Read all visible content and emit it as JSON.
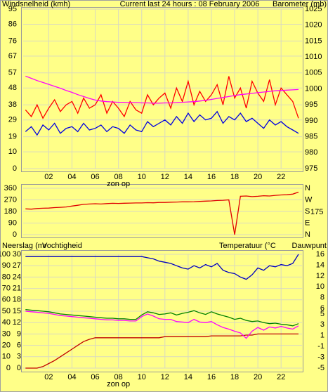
{
  "chart_data": [
    {
      "type": "line",
      "title": "Current last 24 hours : 08 February 2006",
      "ylabel": "Windsnelheid (kmh)",
      "ylabel_color": "#e00000",
      "y2label": "Barometer (mb)",
      "y2label_color": "#e000e0",
      "x": [
        0,
        0.5,
        1,
        1.5,
        2,
        2.5,
        3,
        3.5,
        4,
        4.5,
        5,
        5.5,
        6,
        6.5,
        7,
        7.5,
        8,
        8.5,
        9,
        9.5,
        10,
        10.5,
        11,
        11.5,
        12,
        12.5,
        13,
        13.5,
        14,
        14.5,
        15,
        15.5,
        16,
        16.5,
        17,
        17.5,
        18,
        18.5,
        19,
        19.5,
        20,
        20.5,
        21,
        21.5,
        22,
        22.5,
        23,
        23.5
      ],
      "xlim": [
        -0.2,
        23.8
      ],
      "xticks": [
        {
          "value": 2,
          "label": "02"
        },
        {
          "value": 4,
          "label": "04"
        },
        {
          "value": 6,
          "label": "06"
        },
        {
          "value": 8,
          "label": "08"
        },
        {
          "value": 10,
          "label": "10"
        },
        {
          "value": 12,
          "label": "12"
        },
        {
          "value": 14,
          "label": "14"
        },
        {
          "value": 16,
          "label": "16"
        },
        {
          "value": 18,
          "label": "18"
        },
        {
          "value": 20,
          "label": "20"
        },
        {
          "value": 22,
          "label": "22"
        }
      ],
      "annotations": [
        {
          "text": "zon op",
          "x": 8
        }
      ],
      "ylim": [
        0,
        95
      ],
      "yticks": [
        0,
        10,
        19,
        29,
        38,
        48,
        57,
        67,
        76,
        86,
        95
      ],
      "y2lim": [
        975,
        1025
      ],
      "y2ticks": [
        975,
        980,
        985,
        990,
        995,
        1000,
        1005,
        1010,
        1015,
        1020,
        1025
      ],
      "grid": true,
      "series": [
        {
          "color": "#ff0000",
          "values": [
            35,
            31,
            38,
            30,
            36,
            41,
            34,
            38,
            40,
            33,
            42,
            36,
            38,
            44,
            33,
            40,
            36,
            31,
            40,
            35,
            33,
            44,
            38,
            42,
            45,
            36,
            48,
            40,
            52,
            38,
            46,
            40,
            44,
            50,
            38,
            55,
            42,
            48,
            36,
            52,
            45,
            40,
            53,
            38,
            48,
            44,
            40,
            30
          ]
        },
        {
          "color": "#0000e0",
          "values": [
            22,
            25,
            20,
            26,
            23,
            27,
            21,
            24,
            25,
            22,
            27,
            23,
            24,
            26,
            22,
            25,
            24,
            21,
            26,
            23,
            22,
            28,
            25,
            27,
            29,
            26,
            31,
            27,
            33,
            28,
            32,
            29,
            30,
            34,
            27,
            31,
            29,
            33,
            28,
            30,
            27,
            24,
            29,
            26,
            28,
            25,
            23,
            21
          ]
        },
        {
          "color": "#ff00ff",
          "axis": "y2",
          "values": [
            1004,
            1003.3,
            1002.6,
            1002,
            1001.4,
            1000.8,
            1000.2,
            999.5,
            998.9,
            998.2,
            997.6,
            997,
            996.5,
            996.2,
            996,
            995.9,
            995.8,
            995.8,
            995.7,
            995.7,
            995.6,
            995.6,
            995.5,
            995.5,
            995.6,
            995.6,
            995.7,
            995.8,
            995.9,
            996,
            996.2,
            996.4,
            996.7,
            997,
            997.3,
            997.6,
            997.9,
            998.2,
            998.4,
            998.6,
            998.8,
            999,
            999.2,
            999.4,
            999.5,
            999.6,
            999.7,
            999.8
          ]
        }
      ]
    },
    {
      "type": "line",
      "x": [
        0,
        0.5,
        1,
        1.5,
        2,
        2.5,
        3,
        3.5,
        4,
        4.5,
        5,
        5.5,
        6,
        6.5,
        7,
        7.5,
        8,
        8.5,
        9,
        9.5,
        10,
        10.5,
        11,
        11.5,
        12,
        12.5,
        13,
        13.5,
        14,
        14.5,
        15,
        15.5,
        16,
        16.5,
        17,
        17.5,
        18,
        18.5,
        19,
        19.5,
        20,
        20.5,
        21,
        21.5,
        22,
        22.5,
        23,
        23.5
      ],
      "xlim": [
        -0.2,
        23.8
      ],
      "ylim": [
        0,
        360
      ],
      "yticks": [
        0,
        90,
        180,
        270,
        360
      ],
      "y2lim": [
        0,
        360
      ],
      "y2ticks": [
        {
          "value": 0,
          "label": "N"
        },
        {
          "value": 90,
          "label": "E"
        },
        {
          "value": 180,
          "label": "S"
        },
        {
          "value": 270,
          "label": "W"
        },
        {
          "value": 360,
          "label": "N"
        }
      ],
      "annotations": [
        {
          "text": "175",
          "y": 175
        }
      ],
      "grid": true,
      "series": [
        {
          "color": "#e00000",
          "values": [
            200,
            198,
            203,
            205,
            206,
            210,
            212,
            215,
            222,
            228,
            235,
            238,
            240,
            238,
            241,
            243,
            242,
            244,
            245,
            246,
            246,
            248,
            247,
            250,
            250,
            252,
            253,
            255,
            255,
            256,
            258,
            260,
            262,
            265,
            267,
            270,
            0,
            298,
            300,
            295,
            298,
            302,
            300,
            305,
            308,
            310,
            315,
            330
          ]
        }
      ]
    },
    {
      "type": "line",
      "x": [
        0,
        0.5,
        1,
        1.5,
        2,
        2.5,
        3,
        3.5,
        4,
        4.5,
        5,
        5.5,
        6,
        6.5,
        7,
        7.5,
        8,
        8.5,
        9,
        9.5,
        10,
        10.5,
        11,
        11.5,
        12,
        12.5,
        13,
        13.5,
        14,
        14.5,
        15,
        15.5,
        16,
        16.5,
        17,
        17.5,
        18,
        18.5,
        19,
        19.5,
        20,
        20.5,
        21,
        21.5,
        22,
        22.5,
        23,
        23.5
      ],
      "xlim": [
        -0.2,
        23.8
      ],
      "xticks": [
        {
          "value": 2,
          "label": "02"
        },
        {
          "value": 4,
          "label": "04"
        },
        {
          "value": 6,
          "label": "06"
        },
        {
          "value": 8,
          "label": "08"
        },
        {
          "value": 10,
          "label": "10"
        },
        {
          "value": 12,
          "label": "12"
        },
        {
          "value": 14,
          "label": "14"
        },
        {
          "value": 16,
          "label": "16"
        },
        {
          "value": 18,
          "label": "18"
        },
        {
          "value": 20,
          "label": "20"
        },
        {
          "value": 22,
          "label": "22"
        }
      ],
      "annotations": [
        {
          "text": "zon op",
          "x": 8
        }
      ],
      "ylim": [
        0,
        100
      ],
      "yticks": [
        0,
        10,
        20,
        30,
        40,
        50,
        60,
        70,
        80,
        90,
        100
      ],
      "y3lim": [
        0,
        30
      ],
      "y3ticks": [
        0,
        3,
        6,
        9,
        12,
        15,
        18,
        21,
        24,
        27,
        30
      ],
      "y2lim": [
        -5,
        16
      ],
      "y2ticks": [
        -5,
        -3,
        -1,
        1,
        3,
        5,
        6,
        8,
        10,
        12,
        14,
        16
      ],
      "grid": true,
      "series": [
        {
          "name": "Neerslag (mr",
          "color": "#c00000",
          "axis": "y3",
          "values": [
            0,
            0,
            0,
            0.4,
            1.2,
            2,
            3,
            4,
            5,
            6,
            7,
            7.6,
            8,
            8,
            8,
            8,
            8,
            8,
            8,
            8,
            8,
            8,
            8,
            8,
            8.3,
            8.3,
            8.3,
            8.3,
            8.3,
            8.3,
            8.3,
            8.3,
            8.5,
            8.5,
            8.5,
            8.5,
            8.5,
            8.5,
            8.7,
            8.7,
            9,
            9,
            9,
            9,
            9,
            9,
            9,
            9
          ]
        },
        {
          "name": "Vochtigheid",
          "color": "#0000c0",
          "values": [
            98,
            98,
            98,
            98,
            98,
            98,
            98,
            98,
            98,
            98,
            98,
            98,
            98,
            98,
            98,
            98,
            98,
            98,
            98,
            98,
            98,
            97,
            96,
            94,
            93,
            92,
            90,
            88,
            87,
            90,
            88,
            91,
            89,
            92,
            86,
            84,
            83,
            80,
            78,
            82,
            88,
            86,
            90,
            89,
            91,
            90,
            92,
            100
          ]
        },
        {
          "name": "Temperatuur (°C",
          "color": "#008000",
          "axis": "y2",
          "values": [
            5.8,
            5.7,
            5.6,
            5.5,
            5.4,
            5.2,
            5,
            4.9,
            4.8,
            4.7,
            4.6,
            4.5,
            4.4,
            4.3,
            4.2,
            4.2,
            4.1,
            4.1,
            4,
            4,
            4.8,
            5.4,
            5.2,
            4.9,
            5,
            5.2,
            4.8,
            5.1,
            5.3,
            5.6,
            5.2,
            4.9,
            5.4,
            5,
            4.7,
            4.4,
            4,
            4.2,
            3.8,
            3.6,
            3.7,
            3.4,
            3.2,
            3.3,
            3.1,
            3,
            2.8,
            3.2
          ]
        },
        {
          "name": "Dauwpunt",
          "color": "#ff00ff",
          "axis": "y2",
          "values": [
            5.5,
            5.4,
            5.3,
            5.2,
            5.1,
            4.9,
            4.7,
            4.6,
            4.5,
            4.4,
            4.3,
            4.2,
            4.1,
            4,
            3.9,
            3.9,
            3.8,
            3.8,
            3.7,
            3.7,
            4.5,
            5,
            4.6,
            4.1,
            4,
            4,
            3.6,
            3.5,
            3.4,
            4,
            3.5,
            3.4,
            3.6,
            3,
            2.5,
            2.2,
            1.8,
            1.5,
            0.5,
            1.8,
            2.5,
            2,
            2.6,
            2.4,
            2.7,
            2.4,
            2.2,
            2.8
          ]
        }
      ]
    }
  ]
}
